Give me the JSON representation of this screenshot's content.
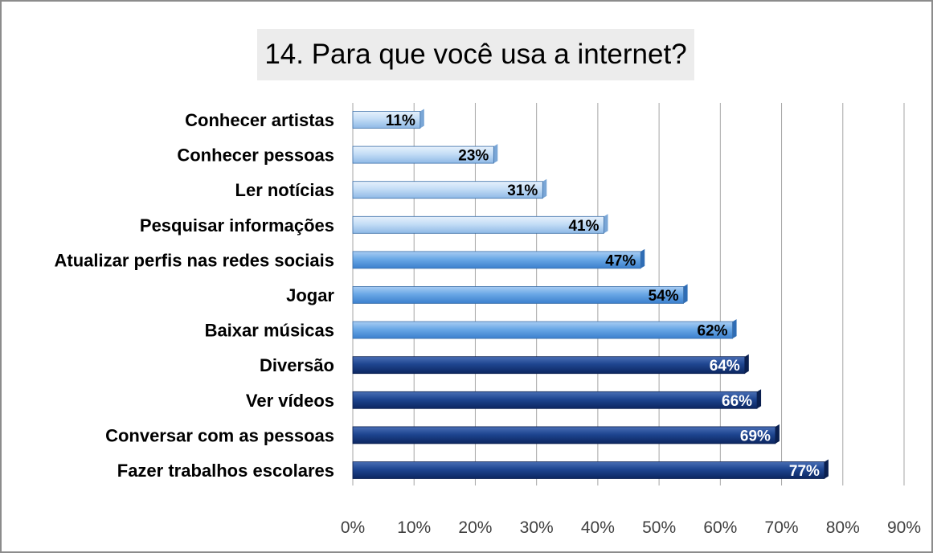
{
  "chart_data": {
    "type": "bar",
    "orientation": "horizontal",
    "title": "14. Para que você usa a internet?",
    "xlabel": "",
    "ylabel": "",
    "categories": [
      "Conhecer artistas",
      "Conhecer pessoas",
      "Ler notícias",
      "Pesquisar informações",
      "Atualizar perfis nas redes sociais",
      "Jogar",
      "Baixar músicas",
      "Diversão",
      "Ver vídeos",
      "Conversar com as pessoas",
      "Fazer trabalhos escolares"
    ],
    "values": [
      11,
      23,
      31,
      41,
      47,
      54,
      62,
      64,
      66,
      69,
      77
    ],
    "value_labels": [
      "11%",
      "23%",
      "31%",
      "41%",
      "47%",
      "54%",
      "62%",
      "64%",
      "66%",
      "69%",
      "77%"
    ],
    "xlim": [
      0,
      90
    ],
    "x_ticks": [
      "0%",
      "10%",
      "20%",
      "30%",
      "40%",
      "50%",
      "60%",
      "70%",
      "80%",
      "90%"
    ],
    "grid": "vertical",
    "legend": "none",
    "colors": {
      "very_light": "#b3d3f1",
      "light": "#5b9ee0",
      "dark": "#16387a",
      "gridline": "#a6a6a6",
      "title_background": "#ececec",
      "border": "#8c8c8c"
    },
    "bar_color_groups": [
      "very_light",
      "very_light",
      "very_light",
      "very_light",
      "light",
      "light",
      "light",
      "dark",
      "dark",
      "dark",
      "dark"
    ]
  }
}
